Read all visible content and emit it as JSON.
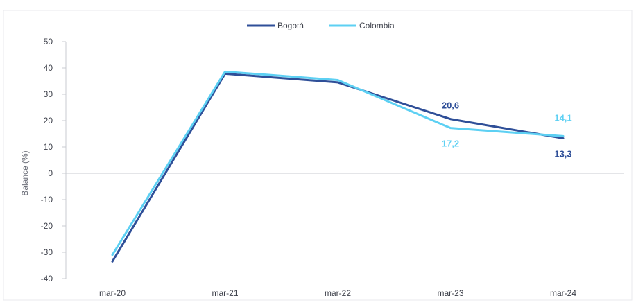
{
  "chart_data": {
    "type": "line",
    "categories": [
      "mar-20",
      "mar-21",
      "mar-22",
      "mar-23",
      "mar-24"
    ],
    "series": [
      {
        "name": "Bogotá",
        "values": [
          -33.5,
          37.8,
          34.5,
          20.6,
          13.3
        ],
        "color": "#2f4f98"
      },
      {
        "name": "Colombia",
        "values": [
          -31.0,
          38.6,
          35.4,
          17.2,
          14.1
        ],
        "color": "#5dd0f3"
      }
    ],
    "ylabel": "Balance (%)",
    "xlabel": "",
    "ylim": [
      -40,
      50
    ],
    "yticks": [
      50,
      40,
      30,
      20,
      10,
      0,
      -10,
      -20,
      -30,
      -40
    ],
    "zero_line": true,
    "legend_position": "top-center",
    "data_labels": [
      {
        "series": "Bogotá",
        "category": "mar-23",
        "text": "20,6"
      },
      {
        "series": "Colombia",
        "category": "mar-23",
        "text": "17,2"
      },
      {
        "series": "Colombia",
        "category": "mar-24",
        "text": "14,1"
      },
      {
        "series": "Bogotá",
        "category": "mar-24",
        "text": "13,3"
      }
    ]
  }
}
